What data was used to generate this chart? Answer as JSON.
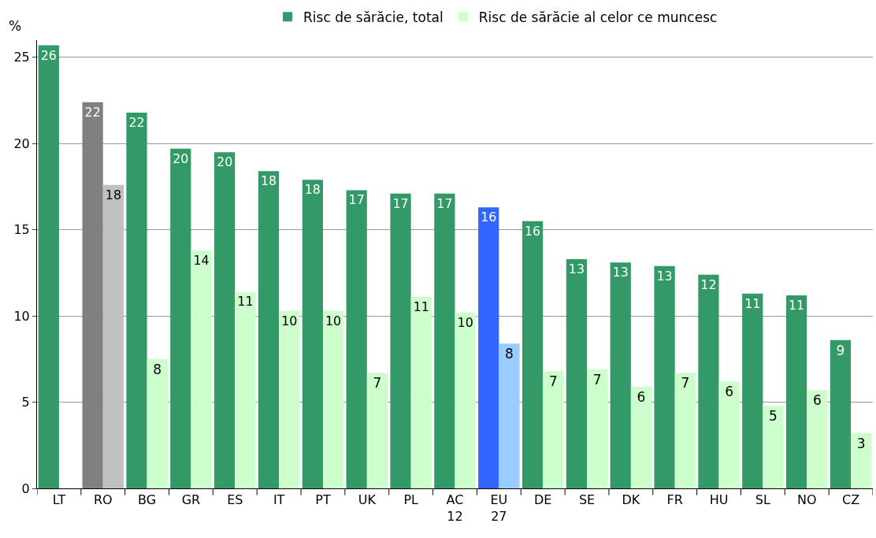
{
  "chart_data": {
    "type": "bar",
    "ylabel": "%",
    "categories": [
      "LT",
      "RO",
      "BG",
      "GR",
      "ES",
      "IT",
      "PT",
      "UK",
      "PL",
      "AC\n12",
      "EU\n27",
      "DE",
      "SE",
      "DK",
      "FR",
      "HU",
      "SL",
      "NO",
      "CZ"
    ],
    "series": [
      {
        "name": "Risc de sărăcie, total",
        "color": "#339966",
        "colors": [
          "#339966",
          "#808080",
          "#339966",
          "#339966",
          "#339966",
          "#339966",
          "#339966",
          "#339966",
          "#339966",
          "#339966",
          "#3366ff",
          "#339966",
          "#339966",
          "#339966",
          "#339966",
          "#339966",
          "#339966",
          "#339966",
          "#339966"
        ],
        "values": [
          25.7,
          22.4,
          21.8,
          19.7,
          19.5,
          18.4,
          17.9,
          17.3,
          17.1,
          17.1,
          16.3,
          15.5,
          13.3,
          13.1,
          12.9,
          12.4,
          11.3,
          11.2,
          8.6
        ],
        "value_labels": [
          "26",
          "22",
          "22",
          "20",
          "20",
          "18",
          "18",
          "17",
          "17",
          "17",
          "16",
          "16",
          "13",
          "13",
          "13",
          "12",
          "11",
          "11",
          "9"
        ]
      },
      {
        "name": "Risc de sărăcie al celor ce muncesc",
        "color": "#ccffcc",
        "colors": [
          "#ccffcc",
          "#c0c0c0",
          "#ccffcc",
          "#ccffcc",
          "#ccffcc",
          "#ccffcc",
          "#ccffcc",
          "#ccffcc",
          "#ccffcc",
          "#ccffcc",
          "#99ccff",
          "#ccffcc",
          "#ccffcc",
          "#ccffcc",
          "#ccffcc",
          "#ccffcc",
          "#ccffcc",
          "#ccffcc",
          "#ccffcc"
        ],
        "values": [
          null,
          17.6,
          7.5,
          13.8,
          11.4,
          10.3,
          10.3,
          6.7,
          11.1,
          10.2,
          8.4,
          6.8,
          6.9,
          5.9,
          6.7,
          6.2,
          4.8,
          5.7,
          3.2
        ],
        "value_labels": [
          null,
          "18",
          "8",
          "14",
          "11",
          "10",
          "10",
          "7",
          "11",
          "10",
          "8",
          "7",
          "7",
          "6",
          "7",
          "6",
          "5",
          "6",
          "3"
        ]
      }
    ],
    "ylim": [
      0,
      26
    ],
    "yticks": [
      0,
      5,
      10,
      15,
      20,
      25
    ],
    "grid": "y",
    "legend": "top"
  }
}
